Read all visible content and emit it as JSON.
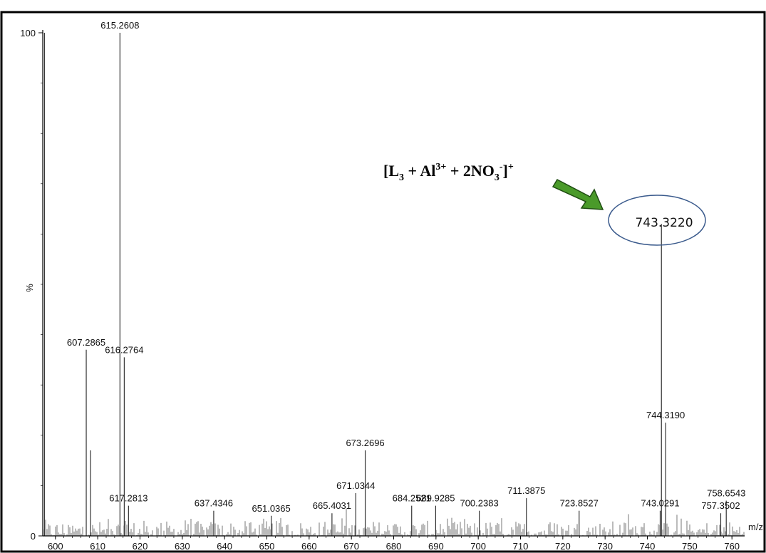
{
  "chart_data": {
    "type": "line",
    "title": "",
    "xlabel": "m/z",
    "ylabel": "%",
    "xlim": [
      597,
      763
    ],
    "ylim": [
      0,
      100
    ],
    "x_ticks": [
      "600",
      "610",
      "620",
      "630",
      "640",
      "650",
      "660",
      "670",
      "680",
      "690",
      "700",
      "710",
      "720",
      "730",
      "740",
      "750",
      "760"
    ],
    "y_ticks": [
      "0",
      "100"
    ],
    "peaks": [
      {
        "mz": 597.4,
        "intensity": 100,
        "label": ""
      },
      {
        "mz": 607.2865,
        "intensity": 37,
        "label": "607.2865"
      },
      {
        "mz": 608.3,
        "intensity": 17,
        "label": ""
      },
      {
        "mz": 615.2608,
        "intensity": 100,
        "label": "615.2608"
      },
      {
        "mz": 616.2764,
        "intensity": 35.5,
        "label": "616.2764"
      },
      {
        "mz": 617.2813,
        "intensity": 6,
        "label": "617.2813"
      },
      {
        "mz": 637.4346,
        "intensity": 5,
        "label": "637.4346"
      },
      {
        "mz": 651.0365,
        "intensity": 4,
        "label": "651.0365"
      },
      {
        "mz": 665.4031,
        "intensity": 4.5,
        "label": "665.4031"
      },
      {
        "mz": 671.0344,
        "intensity": 8.5,
        "label": "671.0344"
      },
      {
        "mz": 673.2696,
        "intensity": 17,
        "label": "673.2696"
      },
      {
        "mz": 684.2521,
        "intensity": 6,
        "label": "684.2521"
      },
      {
        "mz": 689.9285,
        "intensity": 6,
        "label": "689.9285"
      },
      {
        "mz": 700.2383,
        "intensity": 5,
        "label": "700.2383"
      },
      {
        "mz": 711.3875,
        "intensity": 7.5,
        "label": "711.3875"
      },
      {
        "mz": 723.8527,
        "intensity": 5,
        "label": "723.8527"
      },
      {
        "mz": 743.0291,
        "intensity": 5,
        "label": "743.0291"
      },
      {
        "mz": 743.322,
        "intensity": 62,
        "label": "743.3220"
      },
      {
        "mz": 744.319,
        "intensity": 22.5,
        "label": "744.3190"
      },
      {
        "mz": 757.3502,
        "intensity": 4.5,
        "label": "757.3502"
      },
      {
        "mz": 758.6543,
        "intensity": 7,
        "label": "758.6543"
      }
    ],
    "annotation": {
      "formula": [
        "[L",
        "3",
        " + Al",
        "3+",
        " + 2NO",
        "3",
        "-",
        "]",
        "+"
      ],
      "highlighted_peak": "743.3220",
      "arrow_color": "#4a9a2a",
      "circle_color": "#3a5a8c"
    },
    "noise_level_percent": 3,
    "grid": false,
    "legend": "none"
  }
}
